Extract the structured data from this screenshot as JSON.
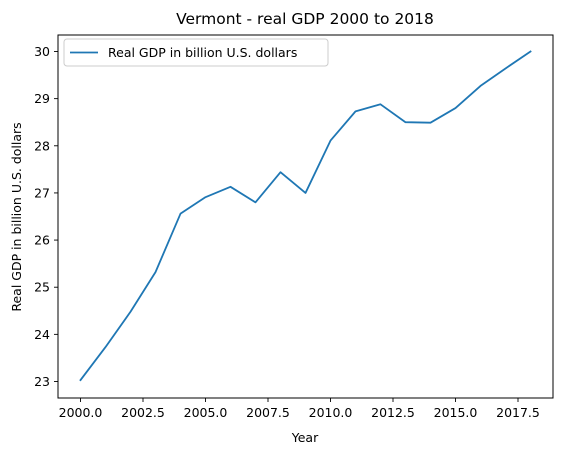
{
  "chart_data": {
    "type": "line",
    "title": "Vermont - real GDP 2000 to 2018",
    "xlabel": "Year",
    "ylabel": "Real GDP in billion U.S. dollars",
    "xlim": [
      1999.1,
      2018.9
    ],
    "ylim": [
      22.65,
      30.35
    ],
    "x_ticks": [
      2000.0,
      2002.5,
      2005.0,
      2007.5,
      2010.0,
      2012.5,
      2015.0,
      2017.5
    ],
    "x_tick_labels": [
      "2000.0",
      "2002.5",
      "2005.0",
      "2007.5",
      "2010.0",
      "2012.5",
      "2015.0",
      "2017.5"
    ],
    "y_ticks": [
      23,
      24,
      25,
      26,
      27,
      28,
      29,
      30
    ],
    "y_tick_labels": [
      "23",
      "24",
      "25",
      "26",
      "27",
      "28",
      "29",
      "30"
    ],
    "grid": false,
    "legend_position": "top-left",
    "series": [
      {
        "name": "Real GDP in billion U.S. dollars",
        "color": "#1f77b4",
        "x": [
          2000,
          2001,
          2002,
          2003,
          2004,
          2005,
          2006,
          2007,
          2008,
          2009,
          2010,
          2011,
          2012,
          2013,
          2014,
          2015,
          2016,
          2017,
          2018
        ],
        "y": [
          23.03,
          23.73,
          24.48,
          25.32,
          26.56,
          26.91,
          27.13,
          26.8,
          27.44,
          27.0,
          28.11,
          28.73,
          28.88,
          28.5,
          28.49,
          28.8,
          29.27,
          29.64,
          30.0
        ]
      }
    ]
  }
}
